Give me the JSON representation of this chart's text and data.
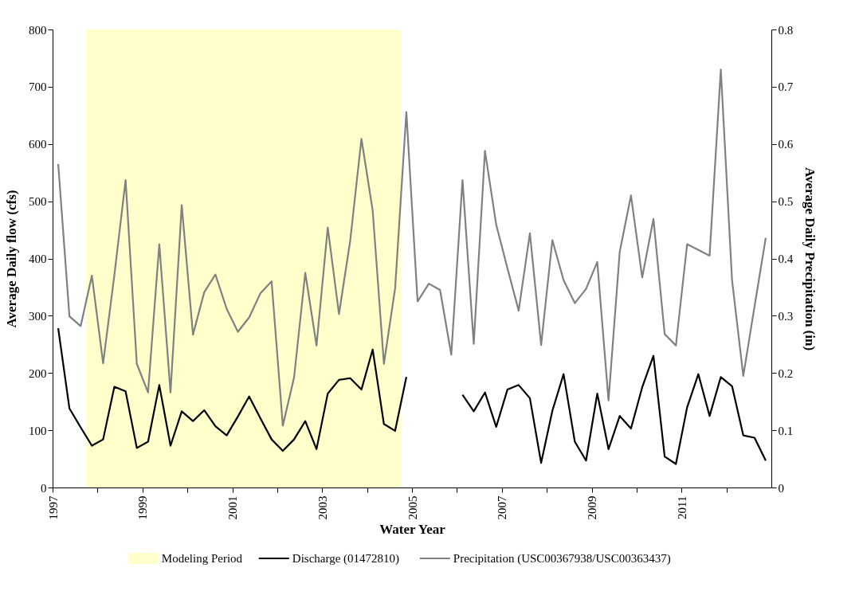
{
  "chart_data": {
    "type": "line",
    "xlabel": "Water Year",
    "ylabel": "Average Daily flow (cfs)",
    "y2label": "Average Daily Precipitation (in)",
    "x": [
      1997.125,
      1997.375,
      1997.625,
      1997.875,
      1998.125,
      1998.375,
      1998.625,
      1998.875,
      1999.125,
      1999.375,
      1999.625,
      1999.875,
      2000.125,
      2000.375,
      2000.625,
      2000.875,
      2001.125,
      2001.375,
      2001.625,
      2001.875,
      2002.125,
      2002.375,
      2002.625,
      2002.875,
      2003.125,
      2003.375,
      2003.625,
      2003.875,
      2004.125,
      2004.375,
      2004.625,
      2004.875,
      2005.125,
      2005.375,
      2005.625,
      2005.875,
      2006.125,
      2006.375,
      2006.625,
      2006.875,
      2007.125,
      2007.375,
      2007.625,
      2007.875,
      2008.125,
      2008.375,
      2008.625,
      2008.875,
      2009.125,
      2009.375,
      2009.625,
      2009.875,
      2010.125,
      2010.375,
      2010.625,
      2010.875,
      2011.125,
      2011.375,
      2011.625,
      2011.875,
      2012.125,
      2012.375,
      2012.625,
      2012.875
    ],
    "series": [
      {
        "name": "Discharge (01472810)",
        "color": "#000000",
        "values": [
          278,
          138,
          105,
          73,
          84,
          176,
          168,
          69,
          80,
          179,
          73,
          133,
          116,
          135,
          107,
          91,
          124,
          159,
          121,
          84,
          64,
          84,
          116,
          67,
          164,
          188,
          191,
          171,
          241,
          111,
          99,
          193,
          null,
          null,
          null,
          null,
          162,
          133,
          166,
          106,
          171,
          179,
          156,
          43,
          134,
          198,
          80,
          47,
          164,
          67,
          125,
          103,
          175,
          230,
          54,
          41,
          140,
          198,
          125,
          193,
          177,
          91,
          87,
          47
        ]
      },
      {
        "name": "Precipitation (USC00367938/USC00363437)",
        "color": "#808080",
        "axis": "y2",
        "values": [
          0.565,
          0.299,
          0.282,
          0.37,
          0.217,
          0.371,
          0.537,
          0.216,
          0.166,
          0.425,
          0.166,
          0.493,
          0.267,
          0.341,
          0.372,
          0.312,
          0.272,
          0.297,
          0.339,
          0.36,
          0.108,
          0.192,
          0.375,
          0.248,
          0.454,
          0.303,
          0.431,
          0.609,
          0.484,
          0.216,
          0.348,
          0.656,
          0.325,
          0.356,
          0.345,
          0.232,
          0.537,
          0.251,
          0.588,
          0.459,
          0.383,
          0.309,
          0.444,
          0.249,
          0.432,
          0.362,
          0.322,
          0.347,
          0.394,
          0.152,
          0.412,
          0.51,
          0.367,
          0.469,
          0.268,
          0.248,
          0.425,
          0.415,
          0.405,
          0.73,
          0.362,
          0.195,
          0.316,
          0.436
        ]
      }
    ],
    "xlim": [
      1997,
      2013
    ],
    "xticks": [
      1997,
      {
        "value": 1998,
        "label": null
      },
      1999,
      {
        "value": 2000,
        "label": null
      },
      2001,
      {
        "value": 2002,
        "label": null
      },
      2003,
      {
        "value": 2004,
        "label": null
      },
      2005,
      {
        "value": 2006,
        "label": null
      },
      2007,
      {
        "value": 2008,
        "label": null
      },
      2009,
      {
        "value": 2010,
        "label": null
      },
      2011,
      {
        "value": 2012,
        "label": null
      }
    ],
    "ylim": [
      0,
      800
    ],
    "yticks": [
      0,
      100,
      200,
      300,
      400,
      500,
      600,
      700,
      800
    ],
    "y2lim": [
      0,
      0.8
    ],
    "y2ticks": [
      0,
      0.1,
      0.2,
      0.3,
      0.4,
      0.5,
      0.6,
      0.7,
      0.8
    ],
    "bands": [
      {
        "axis": "x",
        "from": 1997.75,
        "to": 2004.75,
        "label": "Modeling Period",
        "color": "#ffffcc"
      }
    ],
    "grid": false,
    "legend": "bottom",
    "line_style": "solid",
    "marker": "none"
  }
}
